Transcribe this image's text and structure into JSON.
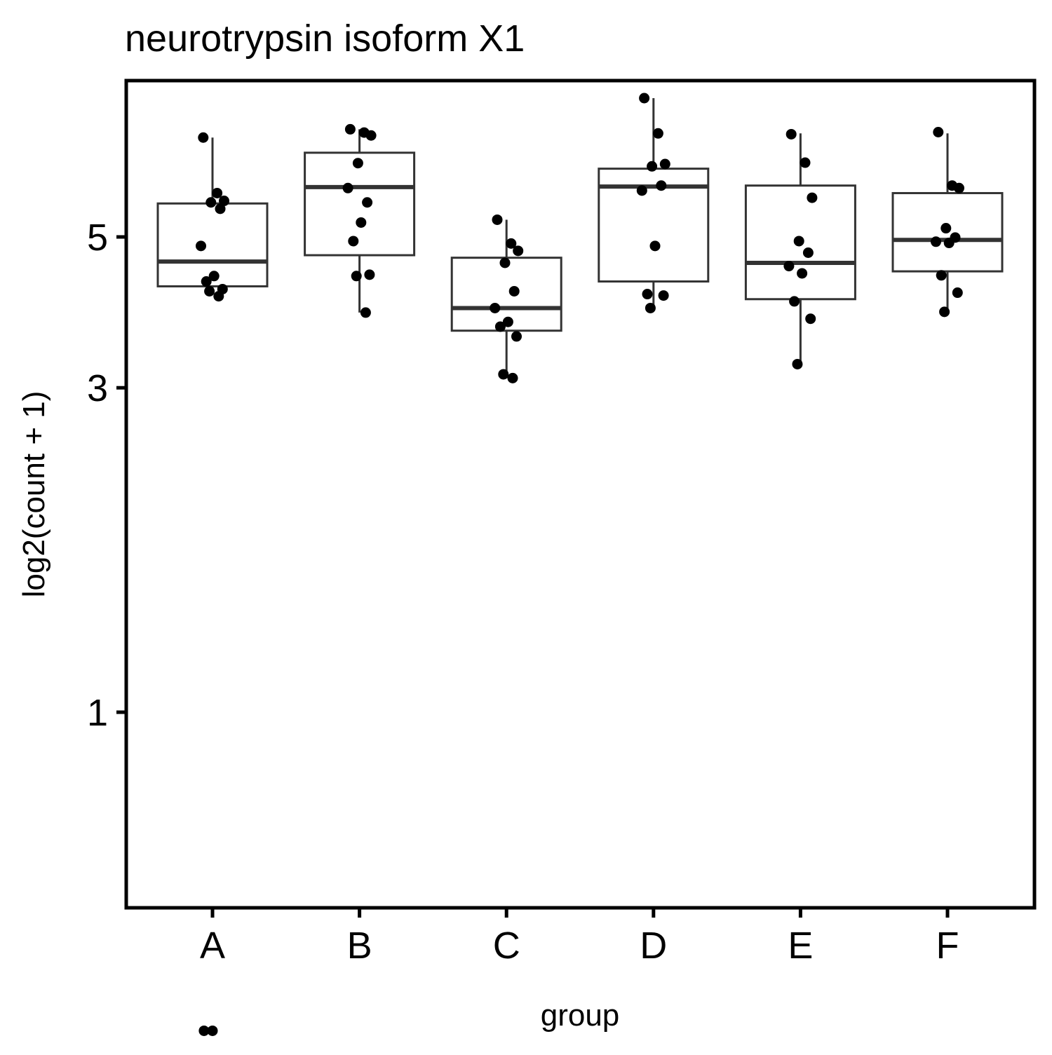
{
  "chart_data": {
    "type": "boxplot",
    "title": "neurotrypsin isoform X1",
    "xlabel": "group",
    "ylabel": "log2(count + 1)",
    "y_scale": "log",
    "ylim": [
      0.37,
      8.7
    ],
    "y_ticks": [
      1,
      3,
      5
    ],
    "grid": false,
    "legend": "none",
    "categories": [
      "A",
      "B",
      "C",
      "D",
      "E",
      "F"
    ],
    "boxes": [
      {
        "group": "A",
        "min": 4.12,
        "q1": 4.23,
        "median": 4.6,
        "q3": 5.6,
        "max": 7.0
      },
      {
        "group": "B",
        "min": 3.87,
        "q1": 4.7,
        "median": 5.92,
        "q3": 6.65,
        "max": 7.2
      },
      {
        "group": "C",
        "min": 3.1,
        "q1": 3.64,
        "median": 3.93,
        "q3": 4.66,
        "max": 5.3
      },
      {
        "group": "D",
        "min": 3.9,
        "q1": 4.3,
        "median": 5.93,
        "q3": 6.3,
        "max": 8.0
      },
      {
        "group": "E",
        "min": 3.24,
        "q1": 4.05,
        "median": 4.58,
        "q3": 5.95,
        "max": 7.1
      },
      {
        "group": "F",
        "min": 3.9,
        "q1": 4.45,
        "median": 4.95,
        "q3": 5.8,
        "max": 7.1
      }
    ],
    "points": [
      {
        "group": "A",
        "values": [
          7.0,
          5.8,
          5.65,
          5.62,
          5.5,
          4.85,
          4.38,
          4.3,
          4.19,
          4.16,
          4.09,
          0.34,
          0.34
        ]
      },
      {
        "group": "B",
        "values": [
          7.2,
          7.12,
          7.05,
          6.42,
          5.62,
          5.9,
          5.25,
          4.93,
          4.4,
          4.38,
          3.87
        ]
      },
      {
        "group": "C",
        "values": [
          5.3,
          4.89,
          4.77,
          4.58,
          4.16,
          3.93,
          3.75,
          3.69,
          3.57,
          3.14,
          3.1
        ]
      },
      {
        "group": "D",
        "values": [
          8.0,
          7.1,
          6.4,
          6.35,
          5.95,
          5.85,
          4.85,
          4.12,
          4.1,
          3.93
        ]
      },
      {
        "group": "E",
        "values": [
          7.08,
          6.43,
          5.71,
          4.93,
          4.74,
          4.53,
          4.42,
          4.02,
          3.79,
          3.25
        ]
      },
      {
        "group": "F",
        "values": [
          7.13,
          5.95,
          5.9,
          5.15,
          4.99,
          4.92,
          4.9,
          4.39,
          4.14,
          3.88
        ]
      }
    ]
  }
}
